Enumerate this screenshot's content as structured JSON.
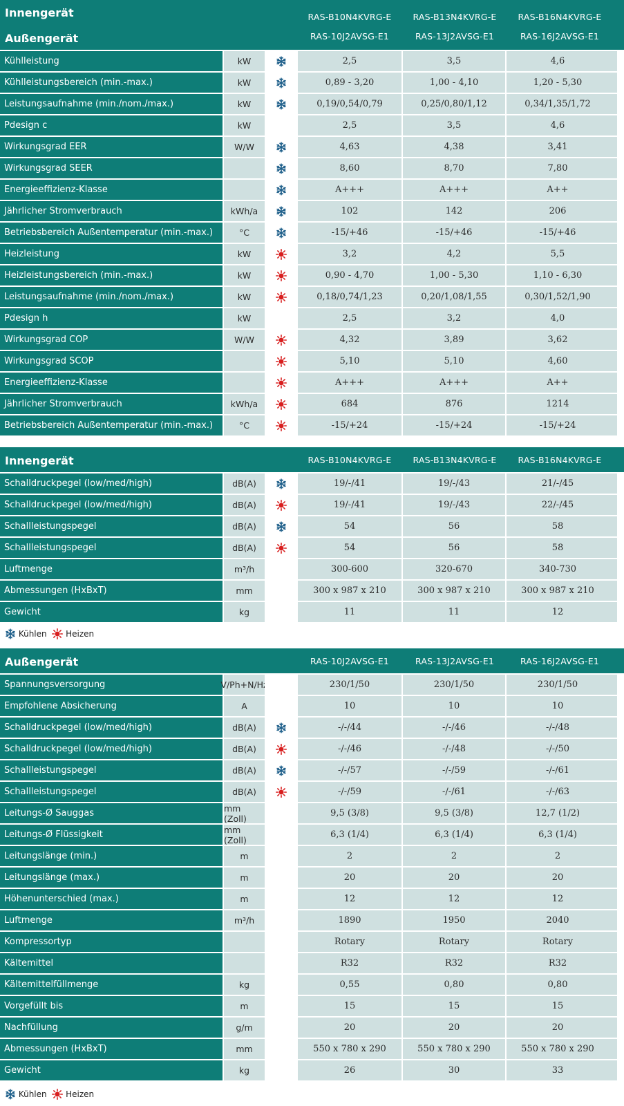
{
  "icons": {
    "cool": "snowflake-icon",
    "heat": "sun-icon",
    "cool_color": "#1e5f8a",
    "heat_color": "#d81f1f"
  },
  "table1": {
    "title_indoor": "Innengerät",
    "title_outdoor": "Außengerät",
    "indoor_models": [
      "RAS-B10N4KVRG-E",
      "RAS-B13N4KVRG-E",
      "RAS-B16N4KVRG-E"
    ],
    "outdoor_models": [
      "RAS-10J2AVSG-E1",
      "RAS-13J2AVSG-E1",
      "RAS-16J2AVSG-E1"
    ],
    "rows": [
      {
        "label": "Kühlleistung",
        "unit": "kW",
        "icon": "cool",
        "v": [
          "2,5",
          "3,5",
          "4,6"
        ]
      },
      {
        "label": "Kühlleistungsbereich (min.-max.)",
        "unit": "kW",
        "icon": "cool",
        "v": [
          "0,89 - 3,20",
          "1,00 - 4,10",
          "1,20 - 5,30"
        ]
      },
      {
        "label": "Leistungsaufnahme (min./nom./max.)",
        "unit": "kW",
        "icon": "cool",
        "v": [
          "0,19/0,54/0,79",
          "0,25/0,80/1,12",
          "0,34/1,35/1,72"
        ]
      },
      {
        "label": "Pdesign c",
        "unit": "kW",
        "icon": "",
        "v": [
          "2,5",
          "3,5",
          "4,6"
        ]
      },
      {
        "label": "Wirkungsgrad EER",
        "unit": "W/W",
        "icon": "cool",
        "v": [
          "4,63",
          "4,38",
          "3,41"
        ]
      },
      {
        "label": "Wirkungsgrad SEER",
        "unit": "",
        "icon": "cool",
        "v": [
          "8,60",
          "8,70",
          "7,80"
        ]
      },
      {
        "label": "Energieeffizienz-Klasse",
        "unit": "",
        "icon": "cool",
        "v": [
          "A+++",
          "A+++",
          "A++"
        ]
      },
      {
        "label": "Jährlicher Stromverbrauch",
        "unit": "kWh/a",
        "icon": "cool",
        "v": [
          "102",
          "142",
          "206"
        ]
      },
      {
        "label": "Betriebsbereich Außentemperatur (min.-max.)",
        "unit": "°C",
        "icon": "cool",
        "v": [
          "-15/+46",
          "-15/+46",
          "-15/+46"
        ]
      },
      {
        "label": "Heizleistung",
        "unit": "kW",
        "icon": "heat",
        "v": [
          "3,2",
          "4,2",
          "5,5"
        ]
      },
      {
        "label": "Heizleistungsbereich (min.-max.)",
        "unit": "kW",
        "icon": "heat",
        "v": [
          "0,90 - 4,70",
          "1,00 - 5,30",
          "1,10 - 6,30"
        ]
      },
      {
        "label": "Leistungsaufnahme (min./nom./max.)",
        "unit": "kW",
        "icon": "heat",
        "v": [
          "0,18/0,74/1,23",
          "0,20/1,08/1,55",
          "0,30/1,52/1,90"
        ]
      },
      {
        "label": "Pdesign h",
        "unit": "kW",
        "icon": "",
        "v": [
          "2,5",
          "3,2",
          "4,0"
        ]
      },
      {
        "label": "Wirkungsgrad COP",
        "unit": "W/W",
        "icon": "heat",
        "v": [
          "4,32",
          "3,89",
          "3,62"
        ]
      },
      {
        "label": "Wirkungsgrad SCOP",
        "unit": "",
        "icon": "heat",
        "v": [
          "5,10",
          "5,10",
          "4,60"
        ]
      },
      {
        "label": "Energieeffizienz-Klasse",
        "unit": "",
        "icon": "heat",
        "v": [
          "A+++",
          "A+++",
          "A++"
        ]
      },
      {
        "label": "Jährlicher Stromverbrauch",
        "unit": "kWh/a",
        "icon": "heat",
        "v": [
          "684",
          "876",
          "1214"
        ]
      },
      {
        "label": "Betriebsbereich Außentemperatur (min.-max.)",
        "unit": "°C",
        "icon": "heat",
        "v": [
          "-15/+24",
          "-15/+24",
          "-15/+24"
        ]
      }
    ]
  },
  "table2": {
    "title": "Innengerät",
    "models": [
      "RAS-B10N4KVRG-E",
      "RAS-B13N4KVRG-E",
      "RAS-B16N4KVRG-E"
    ],
    "rows": [
      {
        "label": "Schalldruckpegel (low/med/high)",
        "unit": "dB(A)",
        "icon": "cool",
        "v": [
          "19/-/41",
          "19/-/43",
          "21/-/45"
        ]
      },
      {
        "label": "Schalldruckpegel (low/med/high)",
        "unit": "dB(A)",
        "icon": "heat",
        "v": [
          "19/-/41",
          "19/-/43",
          "22/-/45"
        ]
      },
      {
        "label": "Schallleistungspegel",
        "unit": "dB(A)",
        "icon": "cool",
        "v": [
          "54",
          "56",
          "58"
        ]
      },
      {
        "label": "Schallleistungspegel",
        "unit": "dB(A)",
        "icon": "heat",
        "v": [
          "54",
          "56",
          "58"
        ]
      },
      {
        "label": "Luftmenge",
        "unit": "m³/h",
        "icon": "",
        "v": [
          "300-600",
          "320-670",
          "340-730"
        ]
      },
      {
        "label": "Abmessungen (HxBxT)",
        "unit": "mm",
        "icon": "",
        "v": [
          "300 x 987 x 210",
          "300 x 987 x 210",
          "300 x 987 x 210"
        ]
      },
      {
        "label": "Gewicht",
        "unit": "kg",
        "icon": "",
        "v": [
          "11",
          "11",
          "12"
        ]
      }
    ]
  },
  "table3": {
    "title": "Außengerät",
    "models": [
      "RAS-10J2AVSG-E1",
      "RAS-13J2AVSG-E1",
      "RAS-16J2AVSG-E1"
    ],
    "rows": [
      {
        "label": "Spannungsversorgung",
        "unit": "V/Ph+N/Hz",
        "icon": "",
        "v": [
          "230/1/50",
          "230/1/50",
          "230/1/50"
        ]
      },
      {
        "label": "Empfohlene Absicherung",
        "unit": "A",
        "icon": "",
        "v": [
          "10",
          "10",
          "10"
        ]
      },
      {
        "label": "Schalldruckpegel (low/med/high)",
        "unit": "dB(A)",
        "icon": "cool",
        "v": [
          "-/-/44",
          "-/-/46",
          "-/-/48"
        ]
      },
      {
        "label": "Schalldruckpegel (low/med/high)",
        "unit": "dB(A)",
        "icon": "heat",
        "v": [
          "-/-/46",
          "-/-/48",
          "-/-/50"
        ]
      },
      {
        "label": "Schallleistungspegel",
        "unit": "dB(A)",
        "icon": "cool",
        "v": [
          "-/-/57",
          "-/-/59",
          "-/-/61"
        ]
      },
      {
        "label": "Schallleistungspegel",
        "unit": "dB(A)",
        "icon": "heat",
        "v": [
          "-/-/59",
          "-/-/61",
          "-/-/63"
        ]
      },
      {
        "label": "Leitungs-Ø Sauggas",
        "unit": "mm (Zoll)",
        "icon": "",
        "v": [
          "9,5 (3/8)",
          "9,5 (3/8)",
          "12,7 (1/2)"
        ]
      },
      {
        "label": "Leitungs-Ø Flüssigkeit",
        "unit": "mm (Zoll)",
        "icon": "",
        "v": [
          "6,3 (1/4)",
          "6,3 (1/4)",
          "6,3 (1/4)"
        ]
      },
      {
        "label": "Leitungslänge (min.)",
        "unit": "m",
        "icon": "",
        "v": [
          "2",
          "2",
          "2"
        ]
      },
      {
        "label": "Leitungslänge (max.)",
        "unit": "m",
        "icon": "",
        "v": [
          "20",
          "20",
          "20"
        ]
      },
      {
        "label": "Höhenunterschied (max.)",
        "unit": "m",
        "icon": "",
        "v": [
          "12",
          "12",
          "12"
        ]
      },
      {
        "label": "Luftmenge",
        "unit": "m³/h",
        "icon": "",
        "v": [
          "1890",
          "1950",
          "2040"
        ]
      },
      {
        "label": "Kompressortyp",
        "unit": "",
        "icon": "",
        "v": [
          "Rotary",
          "Rotary",
          "Rotary"
        ]
      },
      {
        "label": "Kältemittel",
        "unit": "",
        "icon": "",
        "v": [
          "R32",
          "R32",
          "R32"
        ]
      },
      {
        "label": "Kältemittelfüllmenge",
        "unit": "kg",
        "icon": "",
        "v": [
          "0,55",
          "0,80",
          "0,80"
        ]
      },
      {
        "label": "Vorgefüllt bis",
        "unit": "m",
        "icon": "",
        "v": [
          "15",
          "15",
          "15"
        ]
      },
      {
        "label": "Nachfüllung",
        "unit": "g/m",
        "icon": "",
        "v": [
          "20",
          "20",
          "20"
        ]
      },
      {
        "label": "Abmessungen (HxBxT)",
        "unit": "mm",
        "icon": "",
        "v": [
          "550 x 780 x 290",
          "550 x 780 x 290",
          "550 x 780 x 290"
        ]
      },
      {
        "label": "Gewicht",
        "unit": "kg",
        "icon": "",
        "v": [
          "26",
          "30",
          "33"
        ]
      }
    ]
  },
  "legend": {
    "cool_label": "Kühlen",
    "heat_label": "Heizen"
  }
}
